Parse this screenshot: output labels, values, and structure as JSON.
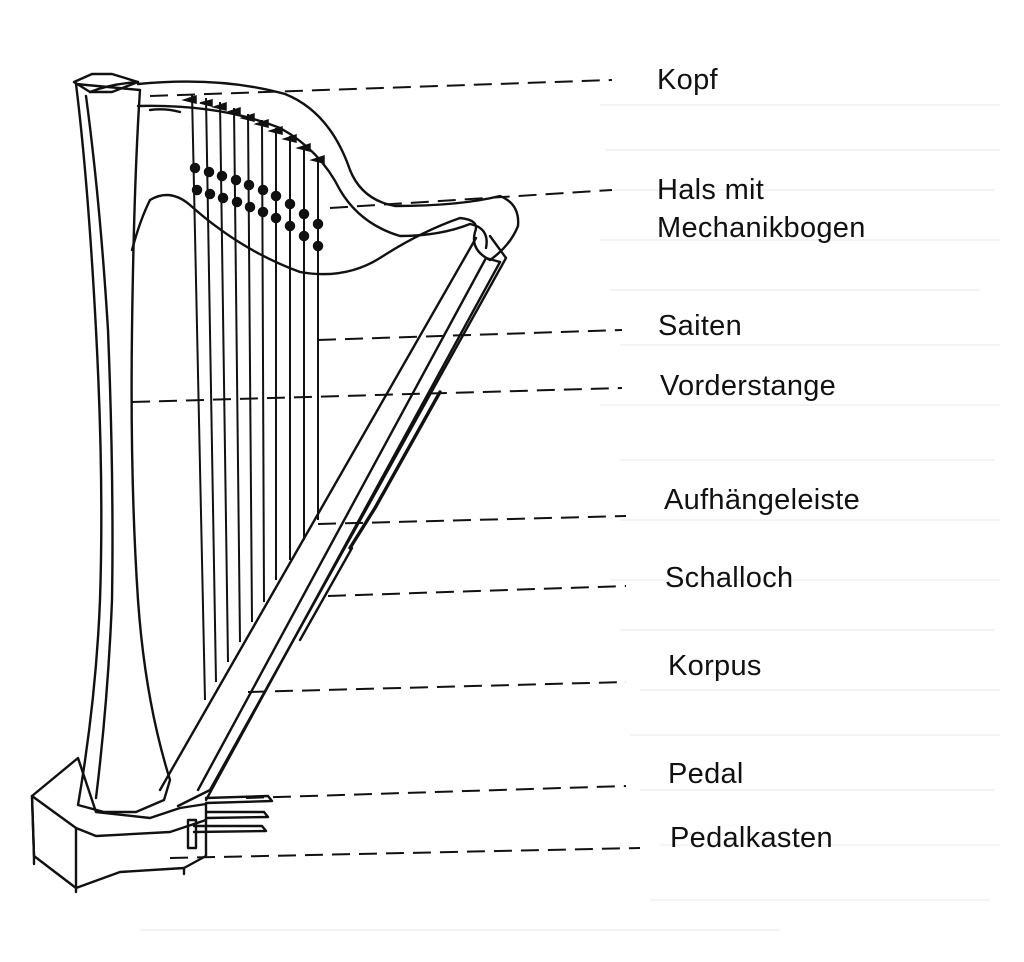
{
  "labels": {
    "kopf": "Kopf",
    "hals_line1": "Hals mit",
    "hals_line2": "Mechanikbogen",
    "saiten": "Saiten",
    "vorderstange": "Vorderstange",
    "aufhaengeleiste": "Aufhängeleiste",
    "schalloch": "Schalloch",
    "korpus": "Korpus",
    "pedal": "Pedal",
    "pedalkasten": "Pedalkasten"
  },
  "colors": {
    "ink": "#111111",
    "paper": "#ffffff"
  }
}
